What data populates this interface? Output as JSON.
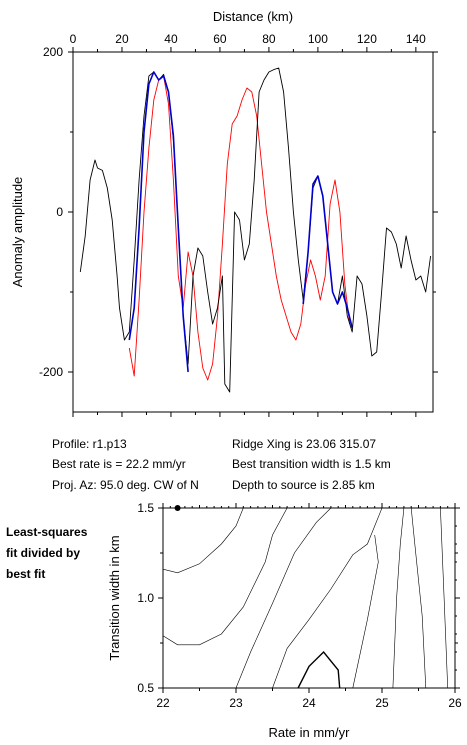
{
  "info": {
    "profile": "Profile: r1.p13",
    "best_rate": "Best rate is = 22.2 mm/yr",
    "proj_az": "Proj. Az: 95.0 deg. CW of N",
    "ridge_xing": "Ridge Xing is 23.06 315.07",
    "best_transition": "Best transition width is 1.5 km",
    "depth": "Depth to source is   2.85 km"
  },
  "side_note": [
    "Least-squares",
    "fit divided by",
    "best fit"
  ],
  "colors": {
    "observed": "#000000",
    "model": "#ff0000",
    "fit_window": "#0000cc"
  },
  "chart_data": [
    {
      "type": "line",
      "xlabel": "Distance (km)",
      "ylabel": "Anomaly amplitude",
      "xlim": [
        0,
        147
      ],
      "ylim": [
        -250,
        200
      ],
      "xticks": [
        0,
        20,
        40,
        60,
        80,
        100,
        120,
        140
      ],
      "yticks": [
        200,
        0,
        -200
      ],
      "series": [
        {
          "role": "observed",
          "x": [
            3,
            5,
            7,
            9,
            10,
            12,
            14,
            16,
            18,
            19,
            21,
            23,
            25,
            27,
            29,
            31,
            33,
            35,
            37,
            39,
            41,
            43,
            45,
            47,
            49,
            51,
            53,
            55,
            57,
            59,
            61,
            62,
            64,
            66,
            68,
            70,
            72,
            74,
            76,
            78,
            80,
            82,
            84,
            86,
            88,
            90,
            92,
            94,
            96,
            98,
            100,
            102,
            104,
            106,
            108,
            110,
            112,
            114,
            116,
            118,
            120,
            122,
            124,
            126,
            128,
            130,
            132,
            134,
            136,
            138,
            140,
            142,
            144,
            146
          ],
          "y": [
            -75,
            -30,
            40,
            65,
            55,
            52,
            30,
            -10,
            -80,
            -120,
            -160,
            -150,
            -60,
            40,
            120,
            170,
            175,
            165,
            172,
            150,
            90,
            -20,
            -130,
            -190,
            -80,
            -45,
            -55,
            -100,
            -140,
            -120,
            -80,
            -215,
            -225,
            0,
            -10,
            -60,
            -40,
            40,
            150,
            165,
            175,
            178,
            180,
            150,
            80,
            0,
            -60,
            -110,
            -50,
            30,
            45,
            20,
            -40,
            -100,
            -115,
            -80,
            -130,
            -150,
            -80,
            -90,
            -130,
            -180,
            -175,
            -100,
            -20,
            -25,
            -40,
            -70,
            -30,
            -60,
            -85,
            -80,
            -100,
            -55
          ]
        },
        {
          "role": "model",
          "x": [
            23,
            25,
            27,
            29,
            31,
            33,
            35,
            37,
            39,
            41,
            43,
            45,
            47,
            49,
            51,
            53,
            55,
            57,
            59,
            61,
            63,
            65,
            67,
            69,
            71,
            73,
            75,
            77,
            79,
            81,
            83,
            85,
            87,
            89,
            91,
            93,
            95,
            97,
            99,
            101,
            103,
            105,
            107,
            109,
            111,
            113
          ],
          "y": [
            -170,
            -205,
            -110,
            0,
            80,
            140,
            165,
            170,
            135,
            40,
            -80,
            -120,
            -50,
            -80,
            -150,
            -195,
            -210,
            -190,
            -130,
            -40,
            60,
            110,
            120,
            140,
            155,
            150,
            120,
            60,
            0,
            -40,
            -80,
            -110,
            -130,
            -150,
            -160,
            -140,
            -90,
            -60,
            -80,
            -110,
            -80,
            10,
            40,
            0,
            -90,
            -140
          ]
        },
        {
          "role": "fit_window",
          "x": [
            23,
            25,
            27,
            29,
            31,
            33,
            35,
            37,
            39,
            41,
            43,
            45,
            47
          ],
          "y": [
            -160,
            -120,
            -20,
            100,
            160,
            175,
            165,
            170,
            150,
            95,
            -20,
            -130,
            -200
          ]
        },
        {
          "role": "fit_window",
          "x": [
            94,
            96,
            98,
            100,
            102,
            104,
            106,
            108,
            110,
            112,
            114
          ],
          "y": [
            -115,
            -50,
            35,
            45,
            20,
            -40,
            -100,
            -115,
            -100,
            -120,
            -145
          ]
        }
      ]
    },
    {
      "type": "contour",
      "xlabel": "Rate in mm/yr",
      "ylabel": "Transition width in km",
      "xlim": [
        22,
        26
      ],
      "ylim": [
        0.5,
        1.5
      ],
      "xticks": [
        22,
        23,
        24,
        25,
        26
      ],
      "yticks": [
        0.5,
        1.0,
        1.5
      ],
      "best_fit": {
        "rate": 22.2,
        "width": 1.5
      },
      "contours": [
        {
          "highlight": false,
          "points": [
            [
              22.0,
              1.16
            ],
            [
              22.2,
              1.14
            ],
            [
              22.5,
              1.19
            ],
            [
              22.8,
              1.3
            ],
            [
              23.0,
              1.4
            ],
            [
              23.1,
              1.5
            ]
          ]
        },
        {
          "highlight": false,
          "points": [
            [
              22.0,
              0.79
            ],
            [
              22.2,
              0.74
            ],
            [
              22.5,
              0.74
            ],
            [
              22.8,
              0.8
            ],
            [
              23.1,
              0.95
            ],
            [
              23.4,
              1.2
            ],
            [
              23.5,
              1.35
            ],
            [
              23.7,
              1.5
            ]
          ]
        },
        {
          "highlight": false,
          "points": [
            [
              23.0,
              0.5
            ],
            [
              23.2,
              0.7
            ],
            [
              23.5,
              0.97
            ],
            [
              23.8,
              1.25
            ],
            [
              24.1,
              1.42
            ],
            [
              24.3,
              1.5
            ]
          ]
        },
        {
          "highlight": false,
          "points": [
            [
              23.5,
              0.5
            ],
            [
              23.7,
              0.72
            ],
            [
              24.0,
              0.88
            ],
            [
              24.3,
              1.05
            ],
            [
              24.6,
              1.24
            ],
            [
              24.8,
              1.3
            ],
            [
              25.0,
              1.5
            ]
          ]
        },
        {
          "highlight": true,
          "points": [
            [
              23.85,
              0.5
            ],
            [
              24.0,
              0.62
            ],
            [
              24.2,
              0.7
            ],
            [
              24.4,
              0.6
            ],
            [
              24.42,
              0.5
            ]
          ]
        },
        {
          "highlight": false,
          "points": [
            [
              24.6,
              0.5
            ],
            [
              24.8,
              0.88
            ],
            [
              24.95,
              1.2
            ],
            [
              24.9,
              1.35
            ]
          ]
        },
        {
          "highlight": false,
          "points": [
            [
              25.15,
              0.5
            ],
            [
              25.2,
              1.0
            ],
            [
              25.25,
              1.3
            ],
            [
              25.3,
              1.5
            ]
          ]
        },
        {
          "highlight": false,
          "points": [
            [
              25.6,
              0.5
            ],
            [
              25.55,
              0.9
            ],
            [
              25.45,
              1.3
            ],
            [
              25.4,
              1.5
            ]
          ]
        },
        {
          "highlight": false,
          "points": [
            [
              25.9,
              0.5
            ],
            [
              25.85,
              1.0
            ],
            [
              25.8,
              1.5
            ]
          ]
        }
      ]
    }
  ]
}
